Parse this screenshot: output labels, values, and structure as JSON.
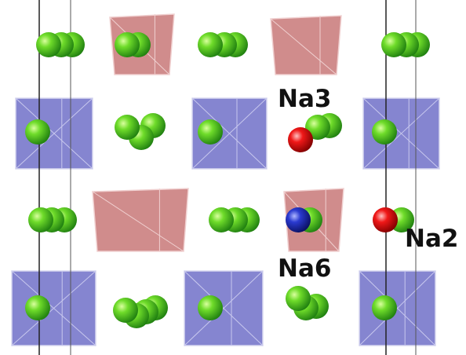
{
  "labels": [
    "Na3",
    "Na6",
    "Na2"
  ]
}
